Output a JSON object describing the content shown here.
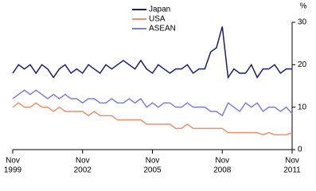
{
  "chart_data": {
    "type": "line",
    "y_unit": "%",
    "x": [
      "Nov 1999",
      "Feb 2000",
      "May 2000",
      "Aug 2000",
      "Nov 2000",
      "Feb 2001",
      "May 2001",
      "Aug 2001",
      "Nov 2001",
      "Feb 2002",
      "May 2002",
      "Aug 2002",
      "Nov 2002",
      "Feb 2003",
      "May 2003",
      "Aug 2003",
      "Nov 2003",
      "Feb 2004",
      "May 2004",
      "Aug 2004",
      "Nov 2004",
      "Feb 2005",
      "May 2005",
      "Aug 2005",
      "Nov 2005",
      "Feb 2006",
      "May 2006",
      "Aug 2006",
      "Nov 2006",
      "Feb 2007",
      "May 2007",
      "Aug 2007",
      "Nov 2007",
      "Feb 2008",
      "May 2008",
      "Aug 2008",
      "Nov 2008",
      "Feb 2009",
      "May 2009",
      "Aug 2009",
      "Nov 2009",
      "Feb 2010",
      "May 2010",
      "Aug 2010",
      "Nov 2010",
      "Feb 2011",
      "May 2011",
      "Aug 2011",
      "Nov 2011"
    ],
    "series": [
      {
        "name": "Japan",
        "color": "#1c1c70",
        "values": [
          18,
          20,
          19,
          20,
          18,
          20,
          19,
          17,
          19,
          20,
          18,
          19,
          18,
          20,
          19,
          18,
          20,
          19,
          20,
          21,
          20,
          19,
          21,
          19,
          18,
          20,
          19,
          18,
          19,
          19,
          20,
          18,
          19,
          19,
          23,
          24,
          29,
          17,
          19,
          18,
          18,
          20,
          17,
          19,
          19,
          20,
          18,
          19,
          19
        ]
      },
      {
        "name": "USA",
        "color": "#ee8f6e",
        "values": [
          10,
          11,
          10,
          10,
          11,
          10,
          10,
          9,
          10,
          9,
          9,
          9,
          9,
          8,
          9,
          8,
          8,
          8,
          7,
          7,
          7,
          7,
          7,
          6,
          6,
          6,
          6,
          6,
          5,
          5,
          6,
          5,
          5,
          5,
          5,
          5,
          5,
          4,
          4,
          4,
          4,
          4,
          4,
          3.5,
          4,
          3.5,
          3.5,
          3.5,
          4
        ]
      },
      {
        "name": "ASEAN",
        "color": "#7d7de0",
        "values": [
          12,
          13,
          14,
          13,
          14,
          13,
          12,
          13,
          12,
          13,
          12,
          12,
          11,
          12,
          12,
          11,
          11,
          12,
          11,
          11,
          12,
          11,
          12,
          10,
          11,
          10,
          11,
          11,
          10,
          10,
          11,
          10,
          10,
          10,
          9,
          9,
          8,
          11,
          10,
          9,
          11,
          10,
          11,
          9,
          10,
          10,
          9,
          10,
          8.5
        ]
      }
    ],
    "ylim": [
      0,
      30
    ],
    "yticks": [
      0,
      10,
      20,
      30
    ],
    "xticks": [
      {
        "value": "Nov 1999",
        "month": "Nov",
        "year": "1999"
      },
      {
        "value": "Nov 2002",
        "month": "Nov",
        "year": "2002"
      },
      {
        "value": "Nov 2005",
        "month": "Nov",
        "year": "2005"
      },
      {
        "value": "Nov 2008",
        "month": "Nov",
        "year": "2008"
      },
      {
        "value": "Nov 2011",
        "month": "Nov",
        "year": "2011"
      }
    ],
    "grid": false
  }
}
